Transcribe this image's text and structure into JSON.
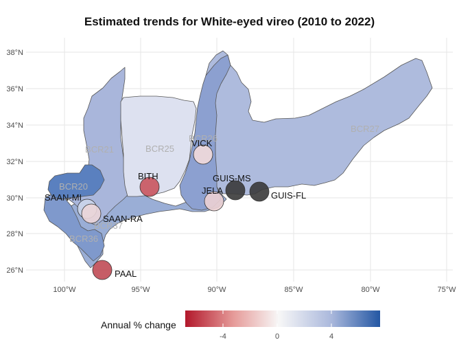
{
  "title": "Estimated trends for White-eyed vireo (2010 to 2022)",
  "axes": {
    "lat_ticks": [
      "26°N",
      "28°N",
      "30°N",
      "32°N",
      "34°N",
      "36°N",
      "38°N"
    ],
    "lon_ticks": [
      "100°W",
      "95°W",
      "90°W",
      "85°W",
      "80°W",
      "75°W"
    ]
  },
  "regions": [
    {
      "id": "BCR20",
      "label": "BCR20",
      "color": "#5a80bf"
    },
    {
      "id": "BCR21",
      "label": "BCR21",
      "color": "#a9b6db"
    },
    {
      "id": "BCR25",
      "label": "BCR25",
      "color": "#dde1f0"
    },
    {
      "id": "BCR26",
      "label": "BCR26",
      "color": "#8ca0d0"
    },
    {
      "id": "BCR27",
      "label": "BCR27",
      "color": "#aebbdd"
    },
    {
      "id": "BCR36",
      "label": "BCR36",
      "color": "#7f99cc"
    },
    {
      "id": "BCR37",
      "label": "BCR37",
      "color": "#9aaed6"
    }
  ],
  "sites": [
    {
      "id": "VICK",
      "label": "VICK",
      "color": "#f2dada"
    },
    {
      "id": "BITH",
      "label": "BITH",
      "color": "#c9555e"
    },
    {
      "id": "GUIS-MS",
      "label": "GUIS-MS",
      "color": "#3a3a3a"
    },
    {
      "id": "GUIS-FL",
      "label": "GUIS-FL",
      "color": "#3a3a3a"
    },
    {
      "id": "JELA",
      "label": "JELA",
      "color": "#ecd0d3"
    },
    {
      "id": "SAAN-MI",
      "label": "SAAN-MI",
      "color": "#cbd5ea"
    },
    {
      "id": "SAAN-RA",
      "label": "SAAN-RA",
      "color": "#ebd5d8"
    },
    {
      "id": "PAAL",
      "label": "PAAL",
      "color": "#c04b55"
    }
  ],
  "legend": {
    "title": "Annual % change",
    "ticks": [
      "-4",
      "0",
      "4"
    ],
    "colors": [
      "#b2182b",
      "#e69c9a",
      "#f7f7f7",
      "#aab8dc",
      "#2457a3"
    ]
  }
}
